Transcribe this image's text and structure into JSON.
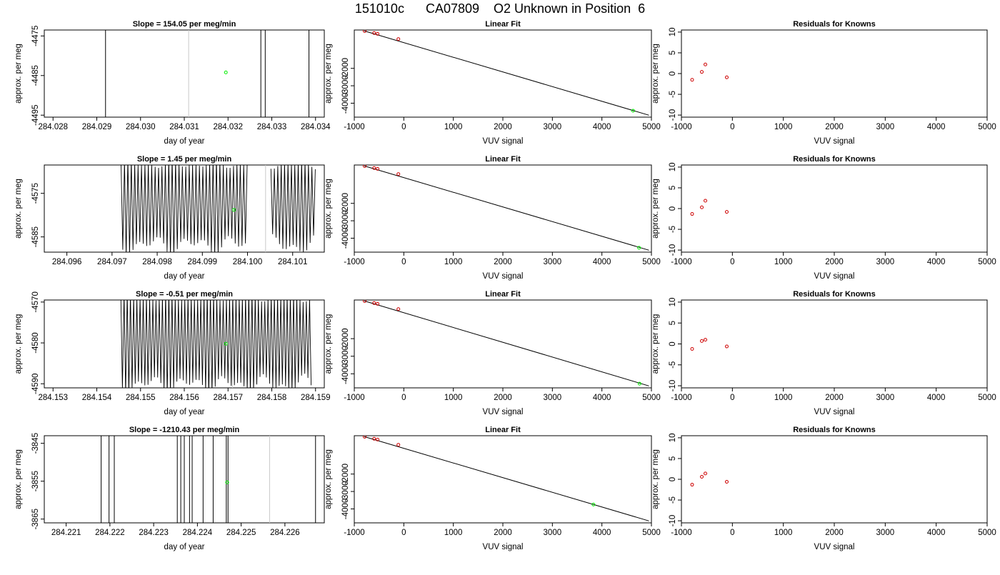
{
  "figure_title": "151010c      CA07809    O2 Unknown in Position  6",
  "chart_data": [
    {
      "type": "line",
      "row": 0,
      "col": 0,
      "panel": "timeseries",
      "title": "Slope =  154.05  per meg/min",
      "xlabel": "day of year",
      "ylabel": "approx. per meg",
      "xlim": [
        284.0278,
        284.0342
      ],
      "ylim": [
        -4495.5,
        -4473.5
      ],
      "xticks": [
        "284.028",
        "284.029",
        "284.030",
        "284.031",
        "284.032",
        "284.033",
        "284.034"
      ],
      "yticks": [
        "-4475",
        "-4485",
        "-4495"
      ],
      "trace": {
        "mode": "sparse",
        "x": [
          284.0292,
          284.03275,
          284.03285,
          284.03385
        ]
      },
      "marker_line_x": 284.0311,
      "unknown_point": [
        284.03195,
        -4484.2
      ],
      "colors": {
        "series": "#000000",
        "guide": "#c8c8c8",
        "unknown": "#00ee00",
        "known": "#cd0000"
      }
    },
    {
      "type": "scatter",
      "row": 0,
      "col": 1,
      "panel": "fit",
      "title": "Linear Fit",
      "xlabel": "VUV signal",
      "ylabel": "approx. per meg",
      "xlim": [
        -1000,
        5000
      ],
      "ylim": [
        -4800,
        200
      ],
      "xticks": [
        "-1000",
        "0",
        "1000",
        "2000",
        "3000",
        "4000",
        "5000"
      ],
      "yticks": [
        "-2000",
        "-3000",
        "-4000"
      ],
      "fit_line": [
        [
          -800,
          150
        ],
        [
          4950,
          -4690
        ]
      ],
      "knowns": [
        [
          -790,
          140
        ],
        [
          -600,
          25
        ],
        [
          -530,
          -20
        ],
        [
          -110,
          -320
        ]
      ],
      "unknown": [
        4630,
        -4430
      ]
    },
    {
      "type": "scatter",
      "row": 0,
      "col": 2,
      "panel": "residuals",
      "title": "Residuals for Knowns",
      "xlabel": "VUV signal",
      "ylabel": "approx. per meg",
      "xlim": [
        -1000,
        5000
      ],
      "ylim": [
        -10.5,
        10.5
      ],
      "xticks": [
        "-1000",
        "0",
        "1000",
        "2000",
        "3000",
        "4000",
        "5000"
      ],
      "yticks": [
        "10",
        "5",
        "0",
        "-5",
        "-10"
      ],
      "knowns": [
        [
          -790,
          -1.5
        ],
        [
          -600,
          0.4
        ],
        [
          -530,
          2.2
        ],
        [
          -110,
          -0.9
        ]
      ]
    },
    {
      "type": "line",
      "row": 1,
      "col": 0,
      "panel": "timeseries",
      "title": "Slope =  1.45  per meg/min",
      "xlabel": "day of year",
      "ylabel": "approx. per meg",
      "xlim": [
        284.0955,
        284.1017
      ],
      "ylim": [
        -4588.5,
        -4568.5
      ],
      "xticks": [
        "284.096",
        "284.097",
        "284.098",
        "284.099",
        "284.100",
        "284.101"
      ],
      "yticks": [
        "-4575",
        "-4585"
      ],
      "trace": {
        "mode": "oscillating",
        "x_start": 284.0972,
        "x_end": 284.1015,
        "gap": [
          284.1,
          284.1005
        ],
        "count": 115,
        "y_high": -4569.5,
        "y_low": -4587.2
      },
      "marker_line_x": 284.1004,
      "unknown_point": [
        284.0997,
        -4578.8
      ]
    },
    {
      "type": "scatter",
      "row": 1,
      "col": 1,
      "panel": "fit",
      "title": "Linear Fit",
      "xlabel": "VUV signal",
      "ylabel": "approx. per meg",
      "xlim": [
        -1000,
        5000
      ],
      "ylim": [
        -4800,
        200
      ],
      "xticks": [
        "-1000",
        "0",
        "1000",
        "2000",
        "3000",
        "4000",
        "5000"
      ],
      "yticks": [
        "-2000",
        "-3000",
        "-4000"
      ],
      "fit_line": [
        [
          -800,
          150
        ],
        [
          4950,
          -4690
        ]
      ],
      "knowns": [
        [
          -790,
          140
        ],
        [
          -600,
          25
        ],
        [
          -530,
          -20
        ],
        [
          -110,
          -320
        ]
      ],
      "unknown": [
        4750,
        -4550
      ]
    },
    {
      "type": "scatter",
      "row": 1,
      "col": 2,
      "panel": "residuals",
      "title": "Residuals for Knowns",
      "xlabel": "VUV signal",
      "ylabel": "approx. per meg",
      "xlim": [
        -1000,
        5000
      ],
      "ylim": [
        -10.5,
        10.5
      ],
      "xticks": [
        "-1000",
        "0",
        "1000",
        "2000",
        "3000",
        "4000",
        "5000"
      ],
      "yticks": [
        "10",
        "5",
        "0",
        "-5",
        "-10"
      ],
      "knowns": [
        [
          -790,
          -1.3
        ],
        [
          -600,
          0.3
        ],
        [
          -530,
          1.9
        ],
        [
          -110,
          -0.8
        ]
      ]
    },
    {
      "type": "line",
      "row": 2,
      "col": 0,
      "panel": "timeseries",
      "title": "Slope =  -0.51  per meg/min",
      "xlabel": "day of year",
      "ylabel": "approx. per meg",
      "xlim": [
        284.1528,
        284.1592
      ],
      "ylim": [
        -4591,
        -4569.5
      ],
      "xticks": [
        "284.153",
        "284.154",
        "284.155",
        "284.156",
        "284.157",
        "284.158",
        "284.159"
      ],
      "yticks": [
        "-4570",
        "-4580",
        "-4590"
      ],
      "trace": {
        "mode": "oscillating",
        "x_start": 284.15455,
        "x_end": 284.1589,
        "gap": null,
        "count": 120,
        "y_high": -4570,
        "y_low": -4590.5
      },
      "marker_line_x": 284.1571,
      "unknown_point": [
        284.15695,
        -4580.2
      ]
    },
    {
      "type": "scatter",
      "row": 2,
      "col": 1,
      "panel": "fit",
      "title": "Linear Fit",
      "xlabel": "VUV signal",
      "ylabel": "approx. per meg",
      "xlim": [
        -1000,
        5000
      ],
      "ylim": [
        -4800,
        200
      ],
      "xticks": [
        "-1000",
        "0",
        "1000",
        "2000",
        "3000",
        "4000",
        "5000"
      ],
      "yticks": [
        "-2000",
        "-3000",
        "-4000"
      ],
      "fit_line": [
        [
          -800,
          150
        ],
        [
          4950,
          -4690
        ]
      ],
      "knowns": [
        [
          -790,
          140
        ],
        [
          -600,
          25
        ],
        [
          -530,
          -20
        ],
        [
          -110,
          -320
        ]
      ],
      "unknown": [
        4760,
        -4560
      ]
    },
    {
      "type": "scatter",
      "row": 2,
      "col": 2,
      "panel": "residuals",
      "title": "Residuals for Knowns",
      "xlabel": "VUV signal",
      "ylabel": "approx. per meg",
      "xlim": [
        -1000,
        5000
      ],
      "ylim": [
        -10.5,
        10.5
      ],
      "xticks": [
        "-1000",
        "0",
        "1000",
        "2000",
        "3000",
        "4000",
        "5000"
      ],
      "yticks": [
        "10",
        "5",
        "0",
        "-5",
        "-10"
      ],
      "knowns": [
        [
          -790,
          -1.2
        ],
        [
          -600,
          0.7
        ],
        [
          -530,
          1.0
        ],
        [
          -110,
          -0.6
        ]
      ]
    },
    {
      "type": "line",
      "row": 3,
      "col": 0,
      "panel": "timeseries",
      "title": "Slope =  -1210.43  per meg/min",
      "xlabel": "day of year",
      "ylabel": "approx. per meg",
      "xlim": [
        284.2205,
        284.2269
      ],
      "ylim": [
        -3866,
        -3843
      ],
      "xticks": [
        "284.221",
        "284.222",
        "284.223",
        "284.224",
        "284.225",
        "284.226"
      ],
      "yticks": [
        "-3845",
        "-3855",
        "-3865"
      ],
      "trace": {
        "mode": "sparse",
        "x": [
          284.2218,
          284.22198,
          284.2221,
          284.22354,
          284.22362,
          284.2237,
          284.22382,
          284.22388,
          284.22413,
          284.22436,
          284.22466,
          284.2247,
          284.2267
        ]
      },
      "marker_line_x": 284.22565,
      "unknown_point": [
        284.22468,
        -3855.3
      ]
    },
    {
      "type": "scatter",
      "row": 3,
      "col": 1,
      "panel": "fit",
      "title": "Linear Fit",
      "xlabel": "VUV signal",
      "ylabel": "approx. per meg",
      "xlim": [
        -1000,
        5000
      ],
      "ylim": [
        -4800,
        200
      ],
      "xticks": [
        "-1000",
        "0",
        "1000",
        "2000",
        "3000",
        "4000",
        "5000"
      ],
      "yticks": [
        "-2000",
        "-3000",
        "-4000"
      ],
      "fit_line": [
        [
          -800,
          150
        ],
        [
          4950,
          -4690
        ]
      ],
      "knowns": [
        [
          -790,
          140
        ],
        [
          -600,
          25
        ],
        [
          -530,
          -20
        ],
        [
          -110,
          -320
        ]
      ],
      "unknown": [
        3830,
        -3750
      ]
    },
    {
      "type": "scatter",
      "row": 3,
      "col": 2,
      "panel": "residuals",
      "title": "Residuals for Knowns",
      "xlabel": "VUV signal",
      "ylabel": "approx. per meg",
      "xlim": [
        -1000,
        5000
      ],
      "ylim": [
        -10.5,
        10.5
      ],
      "xticks": [
        "-1000",
        "0",
        "1000",
        "2000",
        "3000",
        "4000",
        "5000"
      ],
      "yticks": [
        "10",
        "5",
        "0",
        "-5",
        "-10"
      ],
      "knowns": [
        [
          -790,
          -1.3
        ],
        [
          -600,
          0.6
        ],
        [
          -530,
          1.4
        ],
        [
          -110,
          -0.6
        ]
      ]
    }
  ]
}
